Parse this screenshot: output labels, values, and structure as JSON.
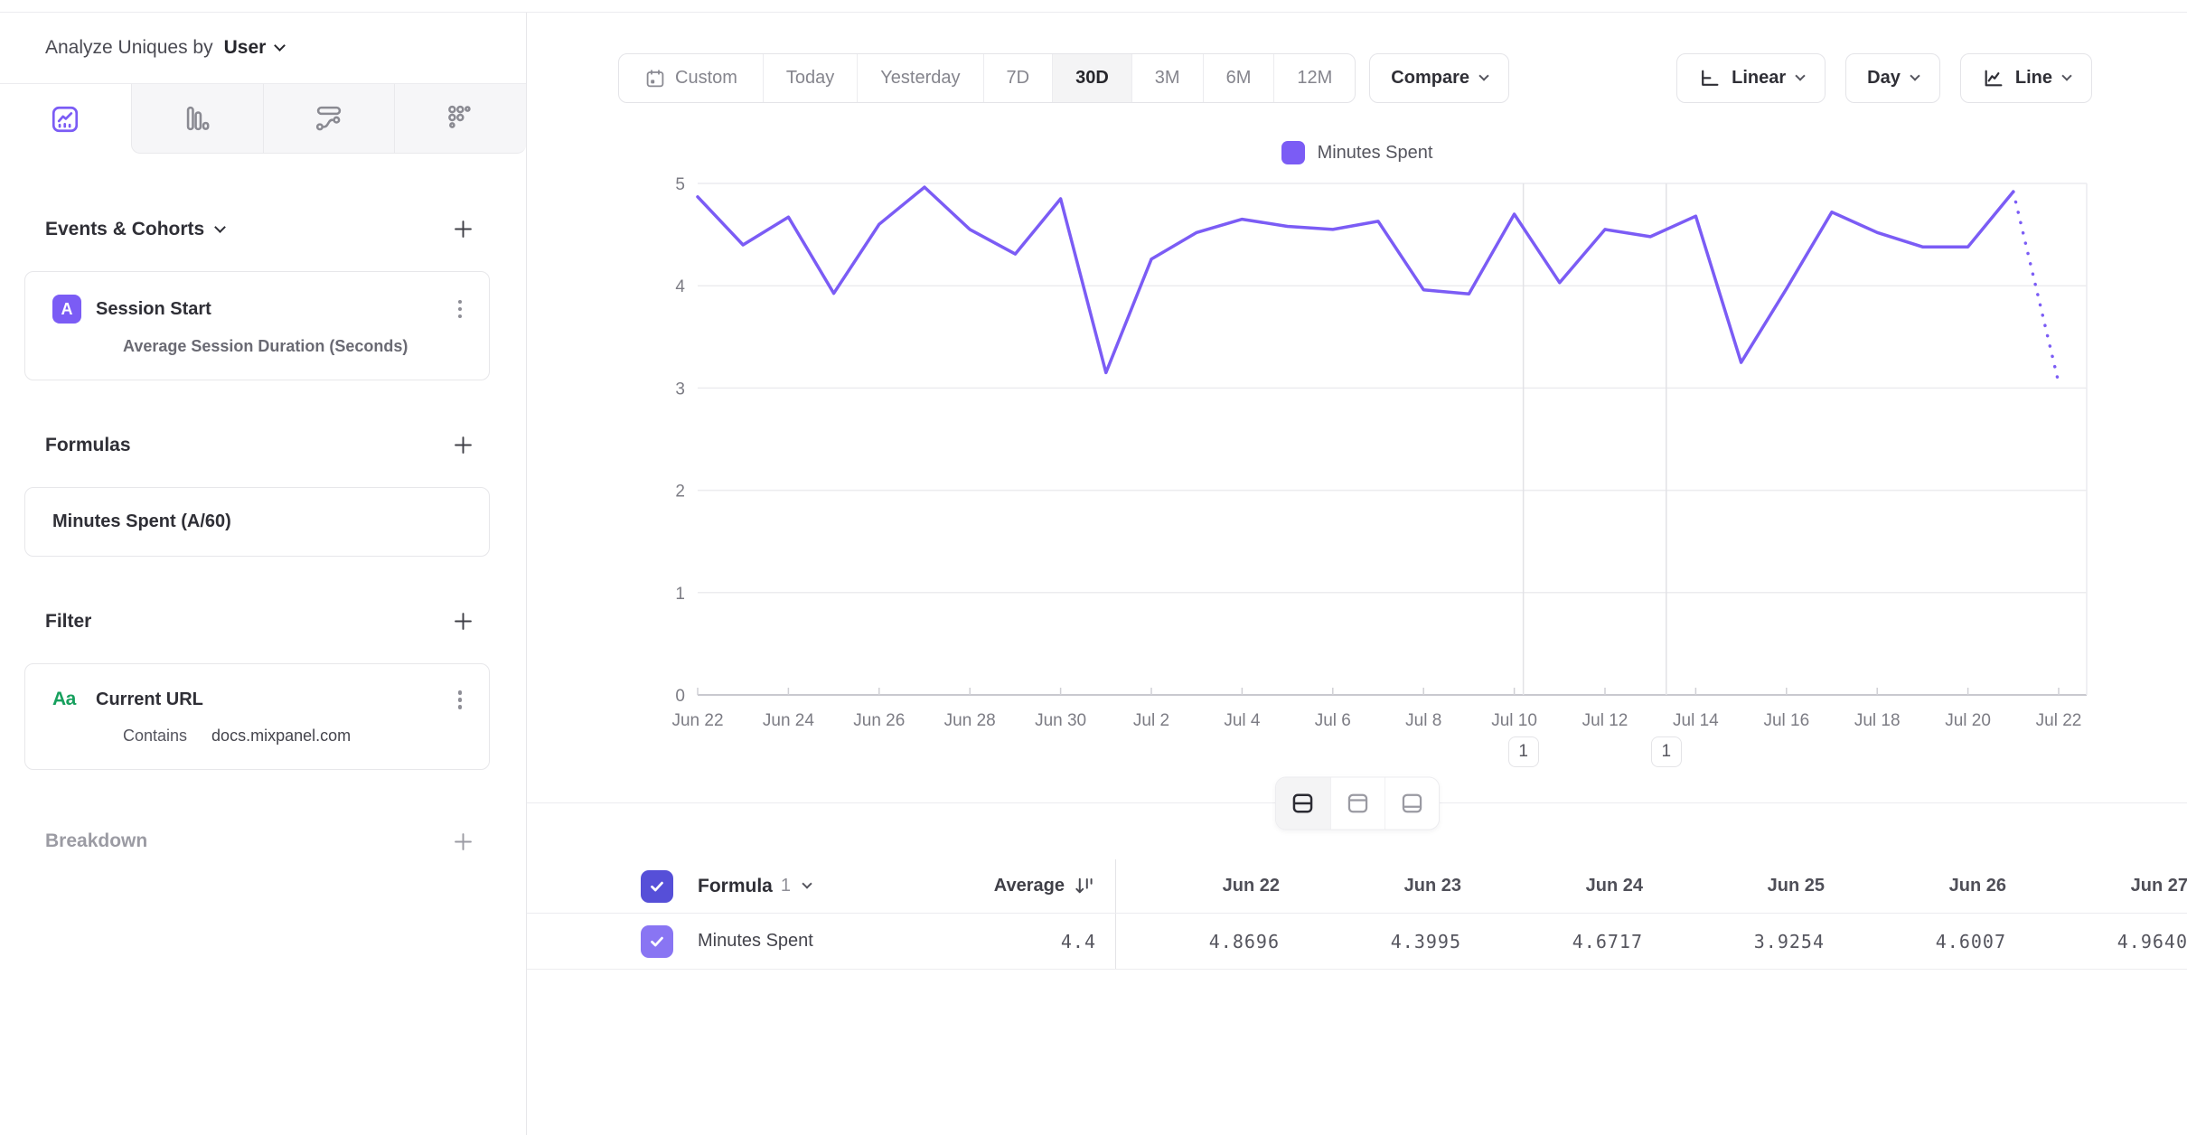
{
  "sidebar": {
    "analyze_label": "Analyze Uniques by",
    "analyze_value": "User",
    "events_section": {
      "title": "Events & Cohorts"
    },
    "event_card": {
      "badge": "A",
      "title": "Session Start",
      "subtitle": "Average Session Duration (Seconds)"
    },
    "formulas_section": {
      "title": "Formulas"
    },
    "formula_card": {
      "title": "Minutes Spent (A/60)"
    },
    "filter_section": {
      "title": "Filter"
    },
    "filter_card": {
      "badge": "Aa",
      "title": "Current URL",
      "operator": "Contains",
      "value": "docs.mixpanel.com"
    },
    "breakdown_section": {
      "title": "Breakdown"
    }
  },
  "toolbar": {
    "date_ranges": [
      "Custom",
      "Today",
      "Yesterday",
      "7D",
      "30D",
      "3M",
      "6M",
      "12M"
    ],
    "selected_range": "30D",
    "compare_label": "Compare",
    "scale_label": "Linear",
    "interval_label": "Day",
    "chart_type_label": "Line"
  },
  "chart": {
    "legend_label": "Minutes Spent",
    "line_color": "#7b5cf5",
    "annotations": [
      {
        "label": "1",
        "day_index": 18.2
      },
      {
        "label": "1",
        "day_index": 21.35
      }
    ]
  },
  "chart_data": {
    "type": "line",
    "title": "",
    "x": [
      "Jun 22",
      "Jun 23",
      "Jun 24",
      "Jun 25",
      "Jun 26",
      "Jun 27",
      "Jun 28",
      "Jun 29",
      "Jun 30",
      "Jul 1",
      "Jul 2",
      "Jul 3",
      "Jul 4",
      "Jul 5",
      "Jul 6",
      "Jul 7",
      "Jul 8",
      "Jul 9",
      "Jul 10",
      "Jul 11",
      "Jul 12",
      "Jul 13",
      "Jul 14",
      "Jul 15",
      "Jul 16",
      "Jul 17",
      "Jul 18",
      "Jul 19",
      "Jul 20",
      "Jul 21",
      "Jul 22"
    ],
    "series": [
      {
        "name": "Minutes Spent",
        "color": "#7b5cf5",
        "values": [
          4.8696,
          4.3995,
          4.6717,
          3.9254,
          4.6007,
          4.964,
          4.55,
          4.31,
          4.85,
          3.15,
          4.26,
          4.52,
          4.65,
          4.58,
          4.55,
          4.63,
          3.96,
          3.92,
          4.7,
          4.03,
          4.55,
          4.48,
          4.68,
          3.25,
          3.97,
          4.72,
          4.52,
          4.38,
          4.38,
          4.92,
          3.05
        ],
        "dotted_tail_points": 2
      }
    ],
    "xlabel": "",
    "ylabel": "",
    "ylim": [
      0,
      5
    ],
    "yticks": [
      0,
      1,
      2,
      3,
      4,
      5
    ],
    "x_tick_step": 2,
    "grid": true,
    "legend_position": "top"
  },
  "table": {
    "checkbox_color_header": "#564fd8",
    "checkbox_color_row": "#8975f3",
    "group_label": "Formula",
    "group_number": "1",
    "average_label": "Average",
    "date_columns": [
      "Jun 22",
      "Jun 23",
      "Jun 24",
      "Jun 25",
      "Jun 26",
      "Jun 27"
    ],
    "rows": [
      {
        "name": "Minutes Spent",
        "average": "4.4",
        "values": [
          "4.8696",
          "4.3995",
          "4.6717",
          "3.9254",
          "4.6007",
          "4.9640"
        ]
      }
    ]
  }
}
